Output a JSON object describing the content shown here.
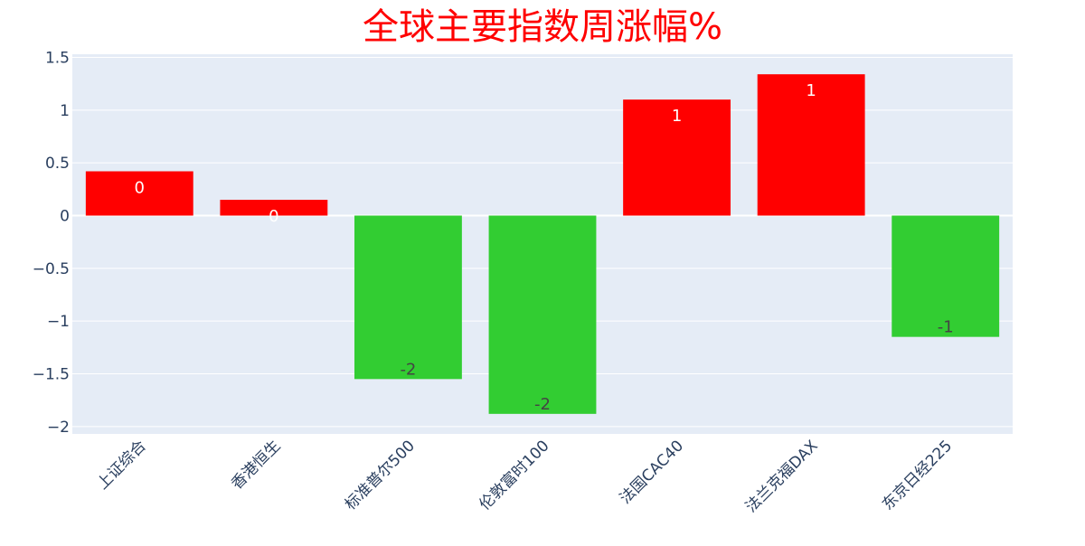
{
  "chart_data": {
    "type": "bar",
    "title": "全球主要指数周涨幅%",
    "xlabel": "",
    "ylabel": "",
    "categories": [
      "上证综合",
      "香港恒生",
      "标准普尔500",
      "伦敦富时100",
      "法国CAC40",
      "法兰克福DAX",
      "东京日经225"
    ],
    "values": [
      0.42,
      0.15,
      -1.55,
      -1.88,
      1.1,
      1.34,
      -1.15
    ],
    "data_labels": [
      "0",
      "0",
      "-2",
      "-2",
      "1",
      "1",
      "-1"
    ],
    "y_ticks": [
      1.5,
      1,
      0.5,
      0,
      -0.5,
      -1,
      -1.5,
      -2
    ],
    "y_tick_labels": [
      "1.5",
      "1",
      "0.5",
      "0",
      "−0.5",
      "−1",
      "−1.5",
      "−2"
    ],
    "ylim": [
      -2.07,
      1.53
    ],
    "grid": true,
    "colors": {
      "title": "#ff0000",
      "positive": "#ff0000",
      "negative": "#32cd32",
      "plot_bg": "#e5ecf6",
      "grid": "#ffffff",
      "axis_text": "#2a3f5f",
      "label_positive": "#ffffff",
      "label_negative": "#444444"
    }
  }
}
